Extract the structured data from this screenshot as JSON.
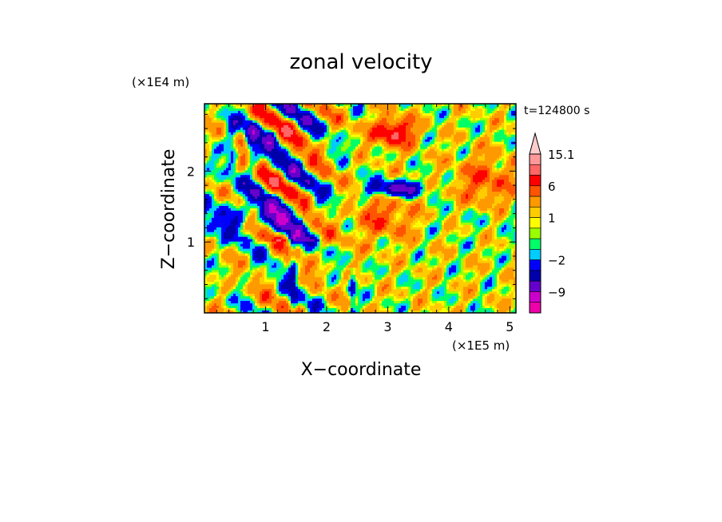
{
  "chart_data": {
    "type": "heatmap",
    "title": "zonal velocity",
    "xlabel": "X−coordinate",
    "ylabel": "Z−coordinate",
    "x_scale_label": "(×1E5 m)",
    "y_scale_label": "(×1E4 m)",
    "time_label": "t=124800 s",
    "xlim": [
      0,
      5.1
    ],
    "ylim": [
      0,
      2.95
    ],
    "x_ticks": [
      1,
      2,
      3,
      4,
      5
    ],
    "y_ticks": [
      1,
      2
    ],
    "colorbar": {
      "labels": [
        {
          "value": 15.1,
          "text": "15.1"
        },
        {
          "value": 6,
          "text": "6"
        },
        {
          "value": 1,
          "text": "1"
        },
        {
          "value": -2,
          "text": "−2"
        },
        {
          "value": -9,
          "text": "−9"
        }
      ],
      "levels": [
        {
          "color": "#ee00aa",
          "min": -16,
          "max": -12
        },
        {
          "color": "#cc00cc",
          "min": -12,
          "max": -9
        },
        {
          "color": "#6600cc",
          "min": -9,
          "max": -6
        },
        {
          "color": "#0000aa",
          "min": -6,
          "max": -4
        },
        {
          "color": "#0000ff",
          "min": -4,
          "max": -2
        },
        {
          "color": "#00ccff",
          "min": -2,
          "max": -1
        },
        {
          "color": "#00ff66",
          "min": -1,
          "max": 0
        },
        {
          "color": "#99ff00",
          "min": 0,
          "max": 0.5
        },
        {
          "color": "#ffff00",
          "min": 0.5,
          "max": 1
        },
        {
          "color": "#ffcc00",
          "min": 1,
          "max": 2
        },
        {
          "color": "#ff9900",
          "min": 2,
          "max": 4
        },
        {
          "color": "#ff5500",
          "min": 4,
          "max": 6
        },
        {
          "color": "#ff0000",
          "min": 6,
          "max": 9
        },
        {
          "color": "#ff6666",
          "min": 9,
          "max": 12
        },
        {
          "color": "#ff9999",
          "min": 12,
          "max": 15.1
        },
        {
          "color": "#ffcccc",
          "min": 15.1,
          "max": 18
        }
      ]
    }
  }
}
